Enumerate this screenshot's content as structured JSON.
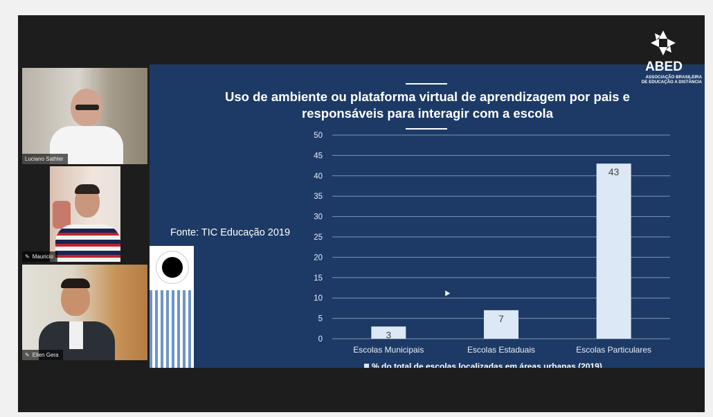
{
  "participants": [
    {
      "name": "Luciano Sathler",
      "mic_icon": false
    },
    {
      "name": "Mauricio",
      "mic_icon": true
    },
    {
      "name": "Ellen Gera",
      "mic_icon": true
    }
  ],
  "slide": {
    "title_line1": "Uso de ambiente ou plataforma virtual de aprendizagem por pais e",
    "title_line2": "responsáveis para interagir com a escola",
    "source": "Fonte: TIC Educação 2019"
  },
  "logo": {
    "word": "ABED",
    "sub_line1": "ASSOCIAÇÃO BRASILEIRA",
    "sub_line2": "DE EDUCAÇÃO A DISTÂNCIA"
  },
  "colors": {
    "slide_bg": "#1d3a66",
    "bar": "#dce8f6",
    "grid": "#7e95b6"
  },
  "chart_data": {
    "type": "bar",
    "categories": [
      "Escolas Municipais",
      "Escolas Estaduais",
      "Escolas Particulares"
    ],
    "series": [
      {
        "name": "% do total de escolas localizadas em áreas urbanas (2019)",
        "values": [
          3,
          7,
          43
        ]
      }
    ],
    "data_labels": [
      "3",
      "7",
      "43"
    ],
    "ylim": [
      0,
      50
    ],
    "yticks": [
      "0",
      "5",
      "10",
      "15",
      "20",
      "25",
      "30",
      "35",
      "40",
      "45",
      "50"
    ],
    "grid": true,
    "legend": "bottom"
  }
}
